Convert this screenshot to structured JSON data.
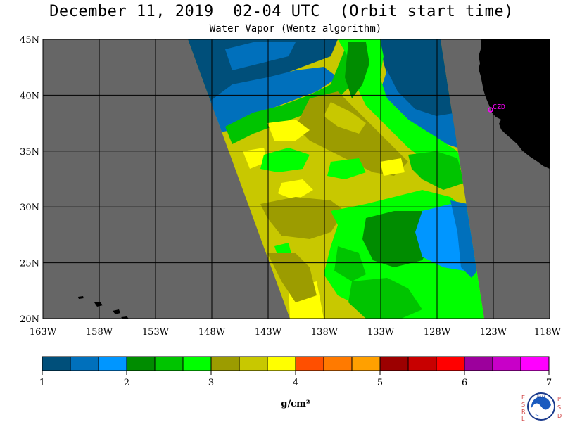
{
  "header": {
    "title": "December 11, 2019  02-04 UTC  (Orbit start time)",
    "subtitle": "Water Vapor (Wentz algorithm)"
  },
  "map": {
    "lat_range": [
      20,
      45
    ],
    "lon_range": [
      -163,
      -118
    ],
    "lat_ticks": [
      {
        "value": 45,
        "label": "45N"
      },
      {
        "value": 40,
        "label": "40N"
      },
      {
        "value": 35,
        "label": "35N"
      },
      {
        "value": 30,
        "label": "30N"
      },
      {
        "value": 25,
        "label": "25N"
      },
      {
        "value": 20,
        "label": "20N"
      }
    ],
    "lon_ticks": [
      {
        "value": -163,
        "label": "163W"
      },
      {
        "value": -158,
        "label": "158W"
      },
      {
        "value": -153,
        "label": "153W"
      },
      {
        "value": -148,
        "label": "148W"
      },
      {
        "value": -143,
        "label": "143W"
      },
      {
        "value": -138,
        "label": "138W"
      },
      {
        "value": -133,
        "label": "133W"
      },
      {
        "value": -128,
        "label": "128W"
      },
      {
        "value": -123,
        "label": "123W"
      },
      {
        "value": -118,
        "label": "118W"
      }
    ],
    "station_label": "CZD",
    "no_data_color": "#666666",
    "land_color": "#000000",
    "station_color": "#ff00ff"
  },
  "colorbar": {
    "colors": [
      "#004f7a",
      "#0070bc",
      "#0096ff",
      "#008c00",
      "#00c400",
      "#00ff00",
      "#9c9c00",
      "#c8c800",
      "#ffff00",
      "#ff4f00",
      "#ff7a00",
      "#ffa000",
      "#9c0000",
      "#c80000",
      "#ff0000",
      "#9c009c",
      "#c800c8",
      "#ff00ff"
    ],
    "tick_labels": [
      "1",
      "2",
      "3",
      "4",
      "5",
      "6",
      "7"
    ],
    "units_label": "g/cm²"
  },
  "logo": {
    "left_letters": "ESRL",
    "right_letters": "PSD",
    "center_text": "NOAA"
  }
}
